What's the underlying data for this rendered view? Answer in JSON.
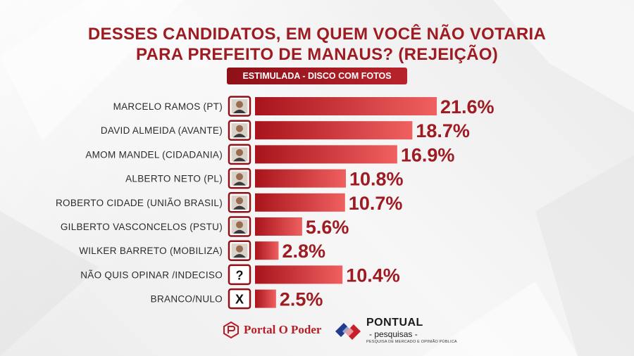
{
  "title": {
    "line1": "DESSES CANDIDATOS, EM QUEM VOCÊ NÃO VOTARIA",
    "line2": "PARA PREFEITO DE MANAUS? (REJEIÇÃO)"
  },
  "subtitle": "ESTIMULADA - DISCO COM FOTOS",
  "colors": {
    "title": "#9e1b22",
    "bar_start": "#a8141b",
    "bar_end": "#f06060",
    "value_text": "#9e1b22",
    "label_text": "#2b2b2b"
  },
  "chart_data": {
    "type": "bar",
    "orientation": "horizontal",
    "categories": [
      "MARCELO RAMOS (PT)",
      "DAVID ALMEIDA (AVANTE)",
      "AMOM MANDEL (CIDADANIA)",
      "ALBERTO NETO (PL)",
      "ROBERTO CIDADE (UNIÃO BRASIL)",
      "GILBERTO VASCONCELOS (PSTU)",
      "WILKER BARRETO (MOBILIZA)",
      "NÃO QUIS OPINAR /INDECISO",
      "BRANCO/NULO"
    ],
    "values": [
      21.6,
      18.7,
      16.9,
      10.8,
      10.7,
      5.6,
      2.8,
      10.4,
      2.5
    ],
    "value_labels": [
      "21.6%",
      "18.7%",
      "16.9%",
      "10.8%",
      "10.7%",
      "5.6%",
      "2.8%",
      "10.4%",
      "2.5%"
    ],
    "icons": [
      "photo",
      "photo",
      "photo",
      "photo",
      "photo",
      "photo",
      "photo",
      "question",
      "x"
    ],
    "icon_symbols": {
      "question": "?",
      "x": "X"
    },
    "xlim": [
      0,
      21.6
    ],
    "grid": false
  },
  "footer": {
    "left_logo": "Portal O Poder",
    "right_logo_name": "PONTUAL",
    "right_logo_sub": "- pesquisas -",
    "right_logo_tagline": "PESQUISA DE MERCADO E OPINIÃO PÚBLICA"
  }
}
